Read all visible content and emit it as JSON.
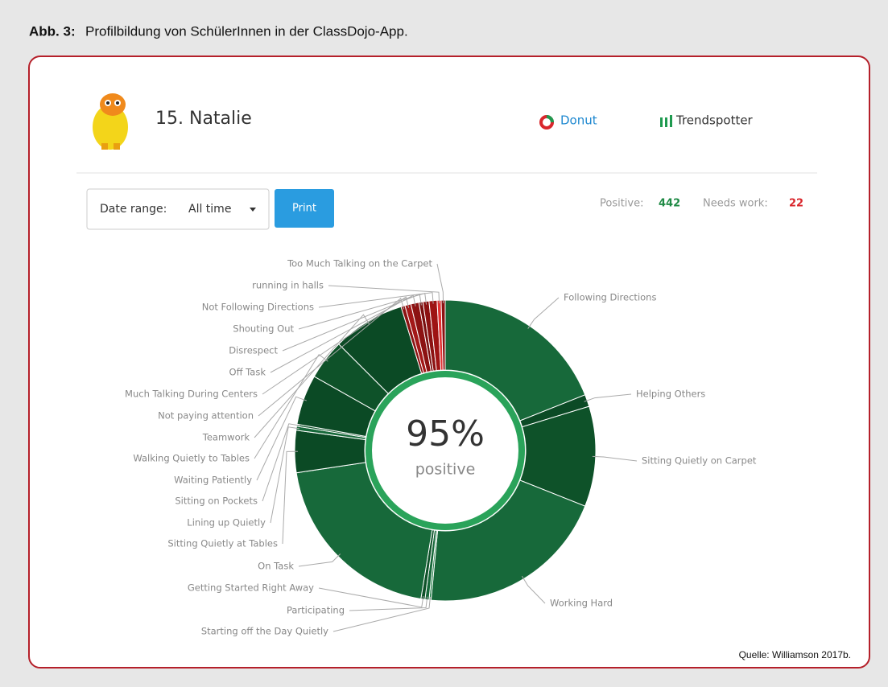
{
  "caption": {
    "label": "Abb. 3:",
    "text": "Profilbildung von SchülerInnen in der ClassDojo-App."
  },
  "header": {
    "student": "15. Natalie",
    "tabs": [
      "Donut",
      "Trendspotter"
    ]
  },
  "controls": {
    "date_range_label": "Date range:",
    "date_range_value": "All time",
    "print": "Print"
  },
  "summary": {
    "positive_label": "Positive:",
    "positive_value": 442,
    "needs_work_label": "Needs work:",
    "needs_work_value": 22
  },
  "source": "Quelle: Williamson 2017b.",
  "chart_data": {
    "type": "donut",
    "center_label": "95%",
    "center_sublabel": "positive",
    "categories": [
      "Following Directions",
      "Helping Others",
      "Sitting Quietly on Carpet",
      "Working Hard",
      "Starting off the Day Quietly",
      "Participating",
      "Getting Started Right Away",
      "On Task",
      "Sitting Quietly at Tables",
      "Lining up Quietly",
      "Sitting on Pockets",
      "Waiting Patiently",
      "Walking Quietly to Tables",
      "Teamwork",
      "Not paying attention",
      "Much Talking During Centers",
      "Off Task",
      "Disrespect",
      "Shouting Out",
      "Not Following Directions",
      "running in halls",
      "Too Much Talking on the Carpet"
    ],
    "values": [
      88,
      6,
      50,
      95,
      1,
      2,
      2,
      93,
      21,
      2,
      1,
      25,
      20,
      36,
      2,
      3,
      4,
      2,
      3,
      4,
      2,
      2
    ],
    "colors": [
      "#17693a",
      "#0b4a25",
      "#0e5229",
      "#17693a",
      "#1c7a42",
      "#17693a",
      "#0e5229",
      "#17693a",
      "#0b4a25",
      "#17693a",
      "#0e5229",
      "#0b4a25",
      "#0e5229",
      "#0b4a25",
      "#8c1212",
      "#a31818",
      "#8c1212",
      "#7a0f0f",
      "#8c1212",
      "#9e1414",
      "#e23030",
      "#8c1212"
    ]
  }
}
